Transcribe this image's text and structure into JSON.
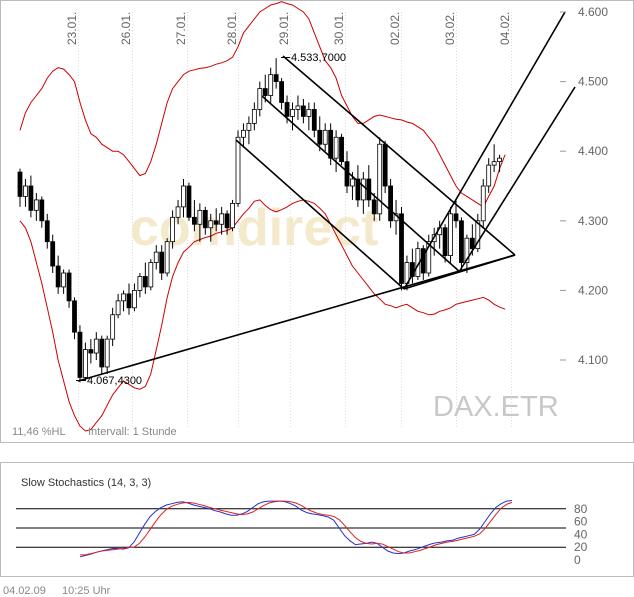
{
  "chart_data": [
    {
      "type": "candlestick",
      "dates": [
        "23.01.",
        "26.01.",
        "27.01.",
        "28.01.",
        "29.01.",
        "30.01.",
        "02.02.",
        "03.02.",
        "04.02."
      ],
      "ylim": [
        4000,
        4620
      ],
      "yticks": [
        "4.100",
        "4.200",
        "4.300",
        "4.400",
        "4.500",
        "4.600"
      ],
      "annotations": [
        {
          "label": "4.533,7000",
          "value": 4533.7
        },
        {
          "label": "4.067,4300",
          "value": 4067.43
        }
      ],
      "watermark": "DAX.ETR",
      "brand_watermark": "comdirect",
      "footer_left": "11,46 %HL",
      "footer_interval": "Intervall: 1 Stunde",
      "candles": [
        [
          4370,
          4375,
          4320,
          4335
        ],
        [
          4335,
          4360,
          4320,
          4350
        ],
        [
          4350,
          4365,
          4305,
          4315
        ],
        [
          4315,
          4340,
          4300,
          4330
        ],
        [
          4330,
          4335,
          4290,
          4300
        ],
        [
          4300,
          4310,
          4260,
          4270
        ],
        [
          4270,
          4280,
          4225,
          4235
        ],
        [
          4235,
          4250,
          4195,
          4205
        ],
        [
          4205,
          4230,
          4195,
          4225
        ],
        [
          4225,
          4230,
          4175,
          4185
        ],
        [
          4185,
          4190,
          4130,
          4140
        ],
        [
          4140,
          4150,
          4068,
          4075
        ],
        [
          4075,
          4125,
          4070,
          4115
        ],
        [
          4115,
          4130,
          4095,
          4110
        ],
        [
          4110,
          4140,
          4100,
          4130
        ],
        [
          4130,
          4135,
          4080,
          4090
        ],
        [
          4090,
          4135,
          4080,
          4130
        ],
        [
          4130,
          4175,
          4120,
          4165
        ],
        [
          4165,
          4195,
          4160,
          4185
        ],
        [
          4185,
          4200,
          4170,
          4195
        ],
        [
          4195,
          4210,
          4165,
          4175
        ],
        [
          4175,
          4210,
          4170,
          4200
        ],
        [
          4200,
          4225,
          4190,
          4220
        ],
        [
          4220,
          4240,
          4195,
          4205
        ],
        [
          4205,
          4245,
          4200,
          4240
        ],
        [
          4240,
          4265,
          4230,
          4255
        ],
        [
          4255,
          4265,
          4215,
          4225
        ],
        [
          4225,
          4275,
          4220,
          4270
        ],
        [
          4270,
          4315,
          4260,
          4305
        ],
        [
          4305,
          4330,
          4295,
          4320
        ],
        [
          4320,
          4360,
          4305,
          4350
        ],
        [
          4350,
          4355,
          4300,
          4305
        ],
        [
          4305,
          4330,
          4285,
          4295
        ],
        [
          4295,
          4325,
          4270,
          4315
        ],
        [
          4315,
          4320,
          4280,
          4290
        ],
        [
          4290,
          4310,
          4270,
          4300
        ],
        [
          4300,
          4318,
          4285,
          4295
        ],
        [
          4295,
          4320,
          4280,
          4310
        ],
        [
          4310,
          4315,
          4280,
          4290
        ],
        [
          4290,
          4330,
          4285,
          4325
        ],
        [
          4325,
          4430,
          4320,
          4420
        ],
        [
          4420,
          4440,
          4405,
          4430
        ],
        [
          4430,
          4450,
          4410,
          4440
        ],
        [
          4440,
          4470,
          4430,
          4460
        ],
        [
          4460,
          4500,
          4450,
          4490
        ],
        [
          4490,
          4510,
          4470,
          4480
        ],
        [
          4480,
          4520,
          4470,
          4510
        ],
        [
          4510,
          4533.7,
          4490,
          4500
        ],
        [
          4500,
          4505,
          4460,
          4470
        ],
        [
          4470,
          4480,
          4440,
          4450
        ],
        [
          4450,
          4470,
          4430,
          4460
        ],
        [
          4460,
          4480,
          4445,
          4465
        ],
        [
          4465,
          4475,
          4440,
          4450
        ],
        [
          4450,
          4470,
          4430,
          4460
        ],
        [
          4460,
          4470,
          4420,
          4430
        ],
        [
          4430,
          4450,
          4400,
          4410
        ],
        [
          4410,
          4440,
          4400,
          4430
        ],
        [
          4430,
          4440,
          4380,
          4390
        ],
        [
          4390,
          4430,
          4370,
          4420
        ],
        [
          4420,
          4425,
          4380,
          4385
        ],
        [
          4385,
          4400,
          4340,
          4350
        ],
        [
          4350,
          4370,
          4330,
          4360
        ],
        [
          4360,
          4380,
          4320,
          4330
        ],
        [
          4330,
          4370,
          4310,
          4360
        ],
        [
          4360,
          4380,
          4320,
          4330
        ],
        [
          4330,
          4340,
          4300,
          4310
        ],
        [
          4310,
          4420,
          4300,
          4410
        ],
        [
          4410,
          4415,
          4340,
          4350
        ],
        [
          4350,
          4360,
          4290,
          4300
        ],
        [
          4300,
          4330,
          4280,
          4310
        ],
        [
          4310,
          4320,
          4200,
          4210
        ],
        [
          4210,
          4250,
          4200,
          4240
        ],
        [
          4240,
          4260,
          4210,
          4220
        ],
        [
          4220,
          4270,
          4215,
          4260
        ],
        [
          4260,
          4265,
          4215,
          4225
        ],
        [
          4225,
          4280,
          4220,
          4270
        ],
        [
          4270,
          4290,
          4250,
          4280
        ],
        [
          4280,
          4300,
          4260,
          4290
        ],
        [
          4290,
          4295,
          4240,
          4250
        ],
        [
          4250,
          4320,
          4240,
          4310
        ],
        [
          4310,
          4330,
          4290,
          4300
        ],
        [
          4300,
          4305,
          4230,
          4240
        ],
        [
          4240,
          4280,
          4225,
          4275
        ],
        [
          4275,
          4295,
          4250,
          4260
        ],
        [
          4260,
          4310,
          4255,
          4300
        ],
        [
          4300,
          4360,
          4290,
          4350
        ],
        [
          4350,
          4390,
          4340,
          4380
        ],
        [
          4380,
          4410,
          4370,
          4385
        ],
        [
          4385,
          4395,
          4370,
          4390
        ]
      ],
      "bollinger_upper": [
        4430,
        4455,
        4470,
        4480,
        4490,
        4505,
        4515,
        4520,
        4518,
        4510,
        4500,
        4470,
        4445,
        4425,
        4420,
        4410,
        4405,
        4400,
        4400,
        4395,
        4385,
        4375,
        4365,
        4368,
        4385,
        4410,
        4440,
        4470,
        4490,
        4500,
        4510,
        4515,
        4517,
        4519,
        4520,
        4522,
        4525,
        4527,
        4530,
        4535,
        4550,
        4570,
        4580,
        4590,
        4600,
        4605,
        4610,
        4612,
        4615,
        4612,
        4610,
        4605,
        4600,
        4590,
        4570,
        4550,
        4530,
        4520,
        4505,
        4480,
        4465,
        4450,
        4440,
        4440,
        4445,
        4450,
        4452,
        4450,
        4448,
        4446,
        4445,
        4442,
        4440,
        4435,
        4430,
        4420,
        4410,
        4395,
        4380,
        4365,
        4350,
        4340,
        4335,
        4330,
        4325,
        4320,
        4335,
        4350,
        4375,
        4395
      ],
      "bollinger_lower": [
        4300,
        4290,
        4270,
        4240,
        4210,
        4175,
        4140,
        4100,
        4070,
        4040,
        4020,
        4005,
        3998,
        4000,
        4010,
        4020,
        4035,
        4050,
        4060,
        4070,
        4065,
        4060,
        4058,
        4062,
        4080,
        4115,
        4150,
        4190,
        4220,
        4240,
        4255,
        4262,
        4270,
        4273,
        4276,
        4278,
        4282,
        4284,
        4286,
        4290,
        4300,
        4310,
        4318,
        4328,
        4330,
        4322,
        4316,
        4313,
        4316,
        4320,
        4325,
        4328,
        4330,
        4328,
        4325,
        4318,
        4310,
        4295,
        4280,
        4265,
        4250,
        4235,
        4225,
        4215,
        4205,
        4195,
        4188,
        4180,
        4178,
        4175,
        4178,
        4180,
        4175,
        4170,
        4168,
        4165,
        4166,
        4170,
        4172,
        4175,
        4180,
        4182,
        4184,
        4186,
        4188,
        4190,
        4186,
        4180,
        4176,
        4173
      ]
    },
    {
      "type": "line",
      "title": "Slow Stochastics (14, 3, 3)",
      "ylim": [
        0,
        100
      ],
      "yticks": [
        "0",
        "20",
        "40",
        "60",
        "80"
      ],
      "series": [
        {
          "values": [
            5,
            7,
            9,
            12,
            14,
            16,
            18,
            18,
            17,
            19,
            28,
            42,
            56,
            68,
            76,
            82,
            86,
            88,
            90,
            91,
            89,
            86,
            84,
            82,
            80,
            77,
            75,
            72,
            70,
            70,
            72,
            76,
            82,
            88,
            91,
            92,
            92,
            92,
            91,
            88,
            84,
            78,
            74,
            72,
            71,
            69,
            67,
            62,
            50,
            38,
            30,
            24,
            25,
            26,
            28,
            26,
            20,
            14,
            11,
            10,
            11,
            14,
            16,
            19,
            22,
            25,
            27,
            28,
            30,
            31,
            34,
            36,
            38,
            40,
            48,
            60,
            72,
            82,
            88,
            92,
            93
          ]
        },
        {
          "values": [
            8,
            8,
            10,
            12,
            14,
            15,
            16,
            17,
            18,
            20,
            20,
            26,
            36,
            48,
            60,
            71,
            79,
            84,
            87,
            89,
            90,
            89,
            87,
            85,
            82,
            80,
            78,
            76,
            74,
            72,
            71,
            72,
            75,
            80,
            85,
            89,
            91,
            92,
            92,
            91,
            89,
            85,
            80,
            76,
            73,
            71,
            70,
            68,
            63,
            54,
            44,
            35,
            29,
            26,
            25,
            26,
            25,
            21,
            17,
            13,
            11,
            11,
            13,
            15,
            18,
            21,
            24,
            26,
            28,
            29,
            31,
            33,
            35,
            37,
            41,
            49,
            60,
            71,
            81,
            87,
            90
          ]
        }
      ]
    }
  ],
  "footer": {
    "date": "04.02.09",
    "time": "10:25 Uhr"
  }
}
